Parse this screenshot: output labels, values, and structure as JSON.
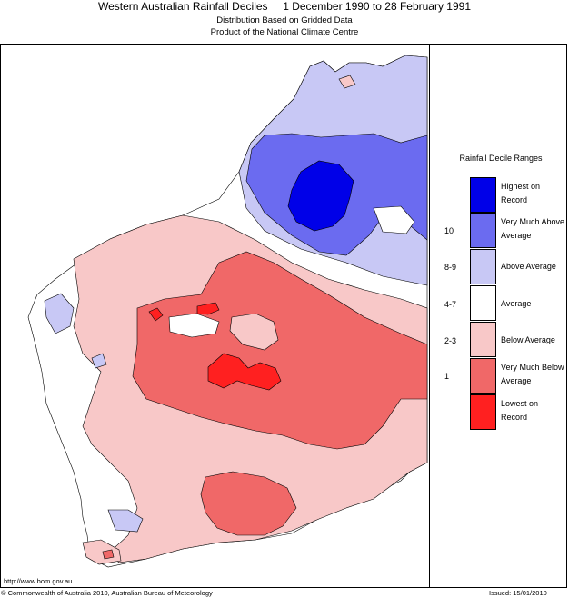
{
  "header": {
    "title": "Western Australian Rainfall Deciles     1 December 1990 to 28 February 1991",
    "subtitle1": "Distribution Based on Gridded Data",
    "subtitle2": "Product of the National Climate Centre"
  },
  "legend": {
    "title": "Rainfall Decile Ranges",
    "items": [
      {
        "label": "Highest on Record",
        "decile": "",
        "color": "#0000e8"
      },
      {
        "label": "Very Much Above Average",
        "decile": "10",
        "color": "#6b6bf0"
      },
      {
        "label": "Above Average",
        "decile": "8-9",
        "color": "#c8c8f5"
      },
      {
        "label": "Average",
        "decile": "4-7",
        "color": "#ffffff"
      },
      {
        "label": "Below Average",
        "decile": "2-3",
        "color": "#f8c8c8"
      },
      {
        "label": "Very Much Below Average",
        "decile": "1",
        "color": "#f06868"
      },
      {
        "label": "Lowest on Record",
        "decile": "",
        "color": "#ff2020"
      }
    ]
  },
  "footer": {
    "url": "http://www.bom.gov.au",
    "copyright": "© Commonwealth of Australia 2010, Australian Bureau of Meteorology",
    "issued": "Issued: 15/01/2010"
  }
}
